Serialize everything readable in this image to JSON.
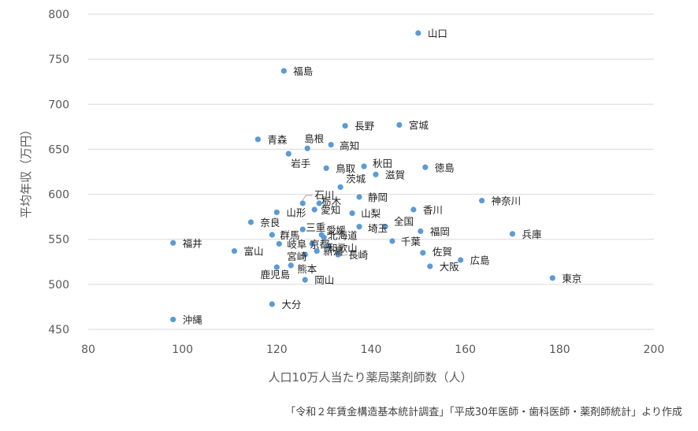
{
  "chart_data": {
    "type": "scatter",
    "xlabel": "人口10万人当たり薬局薬剤師数（人）",
    "ylabel": "平均年収（万円）",
    "xlim": [
      80,
      200
    ],
    "ylim": [
      450,
      800
    ],
    "x_ticks": [
      "80",
      "100",
      "120",
      "140",
      "160",
      "180",
      "200"
    ],
    "y_ticks": [
      "450",
      "500",
      "550",
      "600",
      "650",
      "700",
      "750",
      "800"
    ],
    "grid": "horizontal",
    "marker_color": "#5b9bd5",
    "points": [
      {
        "label": "山口",
        "x": 150,
        "y": 779
      },
      {
        "label": "福島",
        "x": 121.5,
        "y": 737
      },
      {
        "label": "長野",
        "x": 134.5,
        "y": 676
      },
      {
        "label": "宮城",
        "x": 146,
        "y": 677
      },
      {
        "label": "青森",
        "x": 116,
        "y": 661
      },
      {
        "label": "島根",
        "x": 126.5,
        "y": 651
      },
      {
        "label": "高知",
        "x": 131.5,
        "y": 655
      },
      {
        "label": "岩手",
        "x": 122.5,
        "y": 645
      },
      {
        "label": "鳥取",
        "x": 130.5,
        "y": 629
      },
      {
        "label": "秋田",
        "x": 138.5,
        "y": 631
      },
      {
        "label": "徳島",
        "x": 151.5,
        "y": 630
      },
      {
        "label": "滋賀",
        "x": 141,
        "y": 622
      },
      {
        "label": "茨城",
        "x": 133.5,
        "y": 608
      },
      {
        "label": "石川",
        "x": 125.5,
        "y": 590
      },
      {
        "label": "静岡",
        "x": 137.5,
        "y": 597
      },
      {
        "label": "神奈川",
        "x": 163.5,
        "y": 593
      },
      {
        "label": "栃木",
        "x": 129,
        "y": 590
      },
      {
        "label": "山形",
        "x": 120,
        "y": 580
      },
      {
        "label": "愛知",
        "x": 128,
        "y": 583
      },
      {
        "label": "山梨",
        "x": 136,
        "y": 579
      },
      {
        "label": "香川",
        "x": 149,
        "y": 583
      },
      {
        "label": "奈良",
        "x": 114.5,
        "y": 569
      },
      {
        "label": "埼玉",
        "x": 137.5,
        "y": 564
      },
      {
        "label": "全国",
        "x": 143,
        "y": 564
      },
      {
        "label": "三重",
        "x": 125.5,
        "y": 561
      },
      {
        "label": "福岡",
        "x": 150.5,
        "y": 559
      },
      {
        "label": "兵庫",
        "x": 170,
        "y": 556
      },
      {
        "label": "群馬",
        "x": 119,
        "y": 555
      },
      {
        "label": "愛媛",
        "x": 129.5,
        "y": 555
      },
      {
        "label": "北海道",
        "x": 130,
        "y": 552
      },
      {
        "label": "千葉",
        "x": 144.5,
        "y": 548
      },
      {
        "label": "福井",
        "x": 98,
        "y": 546
      },
      {
        "label": "岐阜",
        "x": 120.5,
        "y": 545
      },
      {
        "label": "京都",
        "x": 127.5,
        "y": 545
      },
      {
        "label": "和歌山",
        "x": 131,
        "y": 543
      },
      {
        "label": "富山",
        "x": 111,
        "y": 537
      },
      {
        "label": "佐賀",
        "x": 151,
        "y": 535
      },
      {
        "label": "宮崎",
        "x": 126,
        "y": 533
      },
      {
        "label": "新潟",
        "x": 128.5,
        "y": 537
      },
      {
        "label": "長崎",
        "x": 133,
        "y": 533
      },
      {
        "label": "広島",
        "x": 159,
        "y": 527
      },
      {
        "label": "熊本",
        "x": 123,
        "y": 521
      },
      {
        "label": "大阪",
        "x": 152.5,
        "y": 520
      },
      {
        "label": "鹿児島",
        "x": 120,
        "y": 519
      },
      {
        "label": "東京",
        "x": 178.5,
        "y": 507
      },
      {
        "label": "岡山",
        "x": 126,
        "y": 505
      },
      {
        "label": "大分",
        "x": 119,
        "y": 478
      },
      {
        "label": "沖縄",
        "x": 98,
        "y": 461
      }
    ]
  },
  "source_note": "「令和２年賃金構造基本統計調査」「平成30年医師・歯科医師・薬剤師統計」より作成"
}
